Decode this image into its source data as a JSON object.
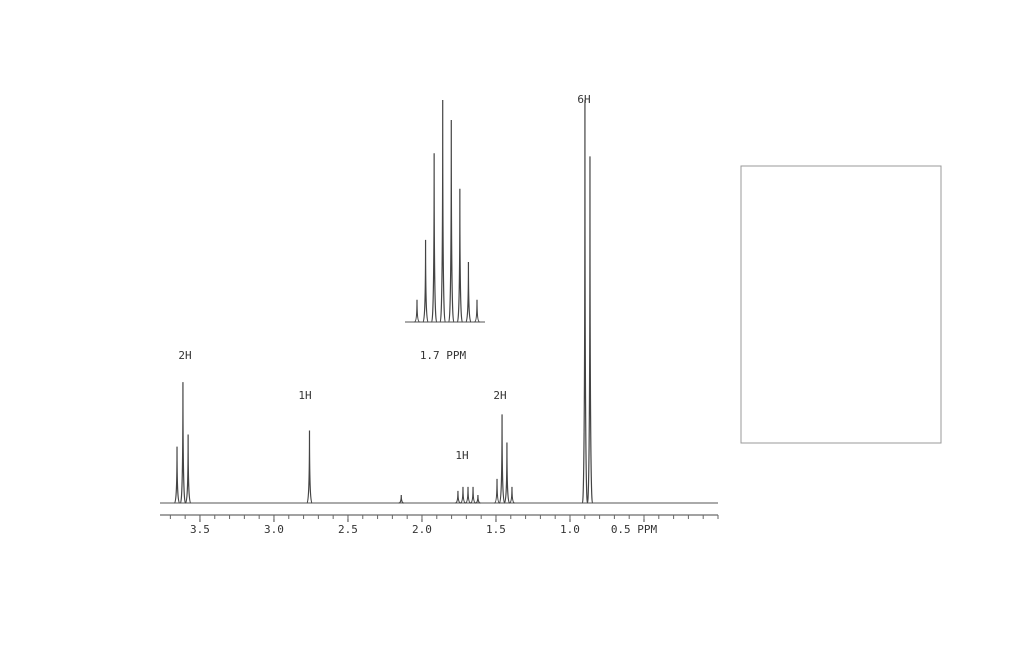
{
  "chart_data": [
    {
      "type": "spectrum",
      "x": [
        3.655,
        3.615,
        3.58,
        2.76,
        2.14,
        1.757,
        1.723,
        1.689,
        1.655,
        1.622,
        1.493,
        1.459,
        1.426,
        1.392,
        0.899,
        0.865
      ],
      "values": [
        14,
        30,
        17,
        18,
        2,
        3,
        4,
        4,
        4,
        2,
        6,
        22,
        15,
        4,
        100,
        86
      ],
      "xlim": [
        3.77,
        0.0
      ],
      "ylim": [
        0,
        100
      ],
      "xticks": [
        3.5,
        {
          "value": 3.0,
          "label": "3.0"
        },
        2.5,
        {
          "value": 2.0,
          "label": "2.0"
        },
        1.5,
        {
          "value": 1.0,
          "label": "1.0"
        },
        {
          "value": 0.5,
          "label": "0.5 PPM"
        }
      ],
      "annotations": [
        "2H",
        "1H",
        "1H",
        "2H",
        "6H"
      ],
      "color": "#444444"
    },
    {
      "type": "spectrum",
      "values": [
        10,
        37,
        76,
        100,
        91,
        60,
        27,
        10
      ],
      "ylim": [
        0,
        100
      ],
      "title": "1.7 PPM",
      "color": "#444444"
    }
  ]
}
